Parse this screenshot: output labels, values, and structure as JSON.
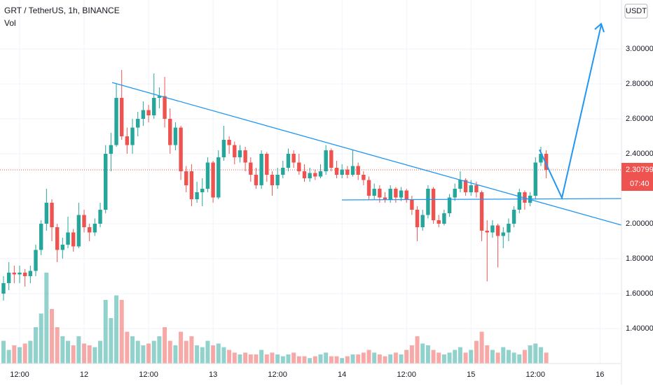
{
  "chart_data": {
    "type": "candlestick",
    "title": "GRT / TetherUS, 1h, BINANCE",
    "subtitle": "Vol",
    "currency": "USDT",
    "last_price": 2.30799,
    "countdown": "07:40",
    "up_color": "#26a69a",
    "down_color": "#ef5350",
    "xlim": [
      -0.65,
      115
    ],
    "xticks": [
      {
        "value": 3,
        "label": "12:00"
      },
      {
        "value": 15,
        "label": "12"
      },
      {
        "value": 27,
        "label": "12:00"
      },
      {
        "value": 39,
        "label": "13"
      },
      {
        "value": 51,
        "label": "12:00"
      },
      {
        "value": 63,
        "label": "14"
      },
      {
        "value": 75,
        "label": "12:00"
      },
      {
        "value": 87,
        "label": "15"
      },
      {
        "value": 99,
        "label": "12:00"
      },
      {
        "value": 111,
        "label": "16"
      }
    ],
    "ylim": [
      1.2,
      3.28
    ],
    "yticks": [
      {
        "value": 1.4,
        "label": "1.40000"
      },
      {
        "value": 1.6,
        "label": "1.60000"
      },
      {
        "value": 1.8,
        "label": "1.80000"
      },
      {
        "value": 2.0,
        "label": "2.00000"
      },
      {
        "value": 2.4,
        "label": "2.40000"
      },
      {
        "value": 2.6,
        "label": "2.60000"
      },
      {
        "value": 2.8,
        "label": "2.80000"
      },
      {
        "value": 3.0,
        "label": "3.00000"
      }
    ],
    "open": [
      1.6,
      1.66,
      1.72,
      1.71,
      1.72,
      1.7,
      1.73,
      1.85,
      2.0,
      2.12,
      1.98,
      1.85,
      1.88,
      1.95,
      1.87,
      2.05,
      1.98,
      1.95,
      2.0,
      2.08,
      2.4,
      2.45,
      2.72,
      2.5,
      2.45,
      2.55,
      2.6,
      2.65,
      2.62,
      2.72,
      2.73,
      2.6,
      2.45,
      2.55,
      2.3,
      2.3,
      2.14,
      2.18,
      2.2,
      2.35,
      2.15,
      2.38,
      2.48,
      2.45,
      2.38,
      2.42,
      2.35,
      2.28,
      2.22,
      2.4,
      2.28,
      2.22,
      2.28,
      2.32,
      2.4,
      2.35,
      2.3,
      2.26,
      2.29,
      2.27,
      2.3,
      2.42,
      2.32,
      2.28,
      2.31,
      2.28,
      2.33,
      2.28,
      2.25,
      2.16,
      2.2,
      2.15,
      2.14,
      2.2,
      2.15,
      2.19,
      2.14,
      2.08,
      1.98,
      2.05,
      2.2,
      2.02,
      2.0,
      2.06,
      2.15,
      2.2,
      2.25,
      2.18,
      2.22,
      2.18,
      1.96,
      1.95,
      1.99,
      1.93,
      1.95,
      2.0,
      2.08,
      2.18,
      2.12,
      2.16,
      2.35,
      2.4
    ],
    "high": [
      1.7,
      1.78,
      1.76,
      1.76,
      1.74,
      1.76,
      1.88,
      2.02,
      2.2,
      2.14,
      2.0,
      1.92,
      2.04,
      1.97,
      2.12,
      2.08,
      2.0,
      2.03,
      2.12,
      2.45,
      2.52,
      2.8,
      2.88,
      2.55,
      2.6,
      2.64,
      2.7,
      2.68,
      2.86,
      2.78,
      2.84,
      2.66,
      2.58,
      2.56,
      2.33,
      2.34,
      2.24,
      2.26,
      2.38,
      2.36,
      2.42,
      2.56,
      2.5,
      2.47,
      2.45,
      2.44,
      2.38,
      2.32,
      2.42,
      2.41,
      2.3,
      2.32,
      2.36,
      2.43,
      2.42,
      2.4,
      2.34,
      2.32,
      2.31,
      2.34,
      2.45,
      2.43,
      2.36,
      2.34,
      2.33,
      2.42,
      2.35,
      2.3,
      2.27,
      2.23,
      2.22,
      2.18,
      2.22,
      2.21,
      2.21,
      2.2,
      2.16,
      2.1,
      2.08,
      2.22,
      2.21,
      2.05,
      2.08,
      2.17,
      2.23,
      2.3,
      2.26,
      2.25,
      2.24,
      2.19,
      2.02,
      2.02,
      2.0,
      1.98,
      2.03,
      2.1,
      2.2,
      2.19,
      2.18,
      2.38,
      2.44,
      2.42
    ],
    "low": [
      1.56,
      1.62,
      1.66,
      1.66,
      1.64,
      1.66,
      1.7,
      1.82,
      1.96,
      1.9,
      1.78,
      1.8,
      1.86,
      1.84,
      1.86,
      1.95,
      1.9,
      1.93,
      1.98,
      2.06,
      2.3,
      2.44,
      2.48,
      2.4,
      2.4,
      2.5,
      2.56,
      2.58,
      2.6,
      2.66,
      2.55,
      2.4,
      2.42,
      2.25,
      2.18,
      2.1,
      2.12,
      2.1,
      2.18,
      2.12,
      2.14,
      2.36,
      2.4,
      2.34,
      2.35,
      2.3,
      2.24,
      2.2,
      2.2,
      2.24,
      2.16,
      2.2,
      2.26,
      2.3,
      2.32,
      2.28,
      2.24,
      2.24,
      2.25,
      2.26,
      2.28,
      2.3,
      2.26,
      2.26,
      2.26,
      2.27,
      2.25,
      2.22,
      2.14,
      2.14,
      2.12,
      2.12,
      2.12,
      2.12,
      2.13,
      2.12,
      2.05,
      1.9,
      1.96,
      2.03,
      2.0,
      1.98,
      1.99,
      2.04,
      2.13,
      2.18,
      2.16,
      2.16,
      2.15,
      1.9,
      1.67,
      1.92,
      1.75,
      1.86,
      1.9,
      1.98,
      2.06,
      2.08,
      2.1,
      2.14,
      2.33,
      2.26
    ],
    "close": [
      1.66,
      1.72,
      1.71,
      1.72,
      1.7,
      1.73,
      1.85,
      2.0,
      2.12,
      1.98,
      1.85,
      1.88,
      1.95,
      1.87,
      2.05,
      1.98,
      1.95,
      2.0,
      2.08,
      2.4,
      2.45,
      2.72,
      2.5,
      2.45,
      2.55,
      2.6,
      2.65,
      2.62,
      2.72,
      2.73,
      2.6,
      2.45,
      2.55,
      2.3,
      2.22,
      2.14,
      2.18,
      2.2,
      2.35,
      2.15,
      2.38,
      2.48,
      2.45,
      2.38,
      2.42,
      2.35,
      2.28,
      2.22,
      2.4,
      2.28,
      2.22,
      2.28,
      2.32,
      2.4,
      2.35,
      2.3,
      2.26,
      2.29,
      2.27,
      2.3,
      2.42,
      2.32,
      2.28,
      2.31,
      2.28,
      2.33,
      2.28,
      2.25,
      2.16,
      2.2,
      2.15,
      2.14,
      2.2,
      2.15,
      2.19,
      2.14,
      2.08,
      1.98,
      2.05,
      2.2,
      2.02,
      2.0,
      2.06,
      2.15,
      2.2,
      2.25,
      2.18,
      2.22,
      2.18,
      1.96,
      1.95,
      1.99,
      1.93,
      1.95,
      2.0,
      2.08,
      2.18,
      2.12,
      2.16,
      2.35,
      2.4,
      2.30799
    ],
    "volume": [
      25,
      15,
      20,
      18,
      22,
      25,
      40,
      55,
      100,
      60,
      40,
      30,
      25,
      20,
      30,
      22,
      20,
      18,
      25,
      70,
      50,
      75,
      70,
      35,
      30,
      25,
      20,
      22,
      25,
      30,
      40,
      25,
      20,
      35,
      25,
      30,
      20,
      18,
      25,
      20,
      22,
      18,
      15,
      12,
      10,
      12,
      10,
      10,
      15,
      10,
      12,
      10,
      8,
      10,
      12,
      8,
      8,
      6,
      8,
      10,
      12,
      8,
      8,
      6,
      8,
      10,
      10,
      12,
      15,
      12,
      10,
      8,
      10,
      12,
      10,
      15,
      20,
      30,
      22,
      20,
      15,
      12,
      10,
      12,
      15,
      18,
      12,
      15,
      25,
      35,
      20,
      15,
      12,
      18,
      15,
      12,
      10,
      15,
      20,
      22,
      18,
      12
    ]
  }
}
